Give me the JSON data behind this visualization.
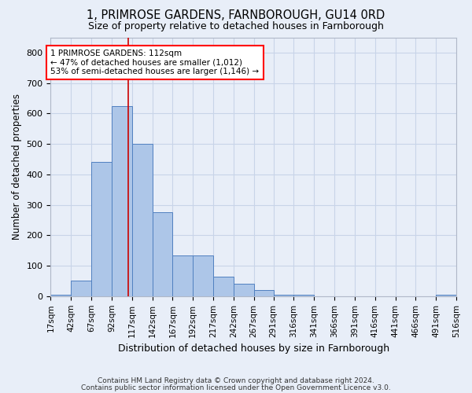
{
  "title1": "1, PRIMROSE GARDENS, FARNBOROUGH, GU14 0RD",
  "title2": "Size of property relative to detached houses in Farnborough",
  "xlabel": "Distribution of detached houses by size in Farnborough",
  "ylabel": "Number of detached properties",
  "footnote1": "Contains HM Land Registry data © Crown copyright and database right 2024.",
  "footnote2": "Contains public sector information licensed under the Open Government Licence v3.0.",
  "annotation_line1": "1 PRIMROSE GARDENS: 112sqm",
  "annotation_line2": "← 47% of detached houses are smaller (1,012)",
  "annotation_line3": "53% of semi-detached houses are larger (1,146) →",
  "bar_color": "#adc6e8",
  "bar_edge_color": "#5080c0",
  "grid_color": "#c8d4e8",
  "vline_color": "#cc0000",
  "vline_x": 112,
  "bin_edges": [
    17,
    42,
    67,
    92,
    117,
    142,
    167,
    192,
    217,
    242,
    267,
    291,
    316,
    341,
    366,
    391,
    416,
    441,
    466,
    491,
    516
  ],
  "bar_heights": [
    5,
    50,
    440,
    625,
    500,
    275,
    135,
    135,
    65,
    40,
    20,
    5,
    5,
    0,
    0,
    0,
    0,
    0,
    0,
    5
  ],
  "ylim": [
    0,
    850
  ],
  "yticks": [
    0,
    100,
    200,
    300,
    400,
    500,
    600,
    700,
    800
  ],
  "bg_color": "#e8eef8",
  "plot_bg_color": "#e8eef8",
  "title1_fontsize": 10.5,
  "title2_fontsize": 9.0,
  "ylabel_fontsize": 8.5,
  "xlabel_fontsize": 9.0,
  "tick_fontsize": 7.5,
  "annotation_fontsize": 7.5,
  "footnote_fontsize": 6.5
}
